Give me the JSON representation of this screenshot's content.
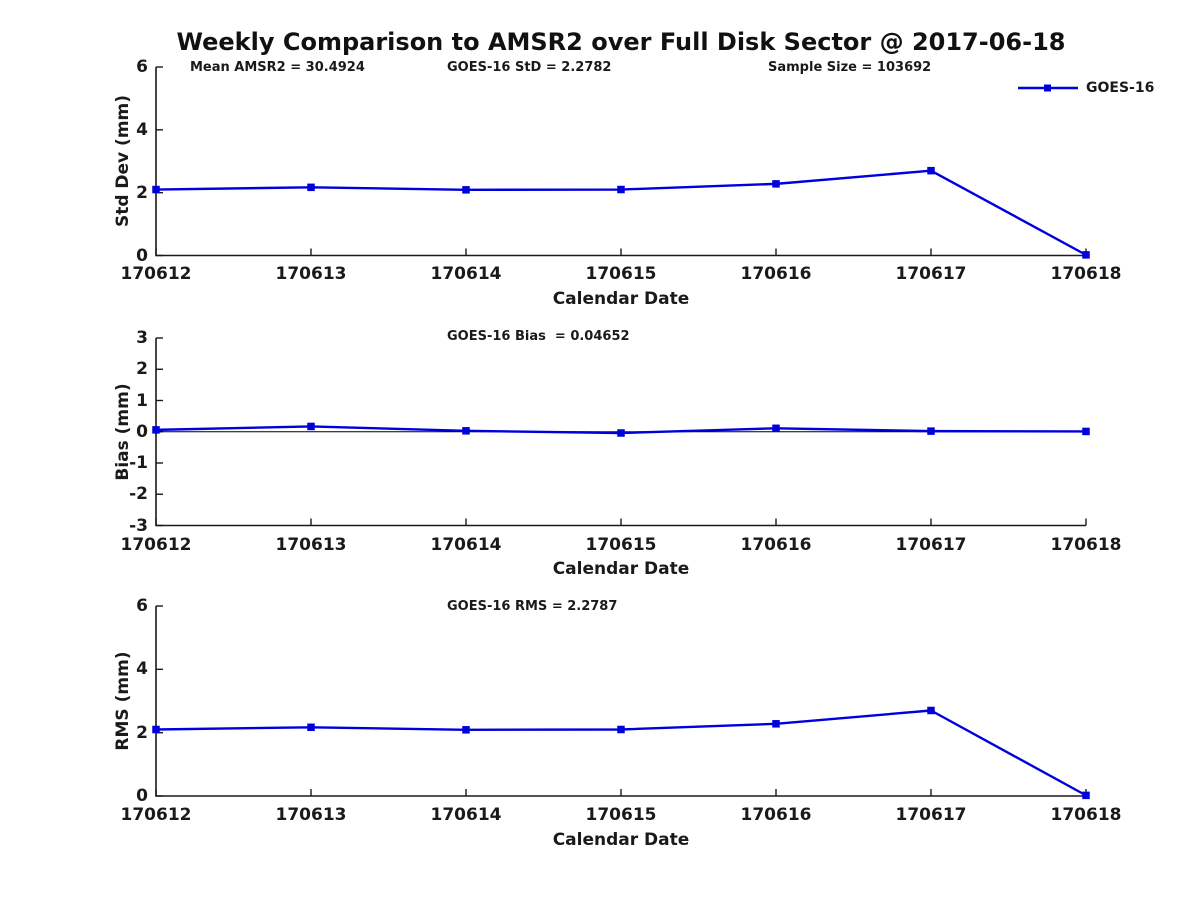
{
  "chart_data": {
    "type": "line",
    "title": "Weekly Comparison to AMSR2 over Full Disk Sector @ 2017-06-18",
    "xlabel": "Calendar Date",
    "categories": [
      "170612",
      "170613",
      "170614",
      "170615",
      "170616",
      "170617",
      "170618"
    ],
    "legend": {
      "label": "GOES-16",
      "position": "top-right"
    },
    "line_color": "#0000dd",
    "marker": "square",
    "text_color": "#1a1a1a",
    "background": "#ffffff",
    "grid": false,
    "subplots": [
      {
        "ylabel": "Std Dev (mm)",
        "ylim": [
          0,
          6
        ],
        "yticks": [
          0,
          2,
          4,
          6
        ],
        "annotations": [
          "Mean AMSR2 = 30.4924",
          "GOES-16 StD = 2.2782",
          "Sample Size = 103692"
        ],
        "zero_line": false,
        "series": [
          {
            "name": "GOES-16",
            "values": [
              2.1,
              2.17,
              2.09,
              2.1,
              2.28,
              2.7,
              0.02
            ]
          }
        ]
      },
      {
        "ylabel": "Bias (mm)",
        "ylim": [
          -3,
          3
        ],
        "yticks": [
          3,
          2,
          1,
          0,
          -1,
          -2,
          -3
        ],
        "annotations": [
          "GOES-16 Bias  = 0.04652"
        ],
        "zero_line": true,
        "series": [
          {
            "name": "GOES-16",
            "values": [
              0.06,
              0.17,
              0.03,
              -0.04,
              0.11,
              0.02,
              0.01
            ]
          }
        ]
      },
      {
        "ylabel": "RMS (mm)",
        "ylim": [
          0,
          6
        ],
        "yticks": [
          0,
          2,
          4,
          6
        ],
        "annotations": [
          "GOES-16 RMS = 2.2787"
        ],
        "zero_line": false,
        "series": [
          {
            "name": "GOES-16",
            "values": [
              2.1,
              2.17,
              2.09,
              2.1,
              2.28,
              2.7,
              0.02
            ]
          }
        ]
      }
    ]
  }
}
